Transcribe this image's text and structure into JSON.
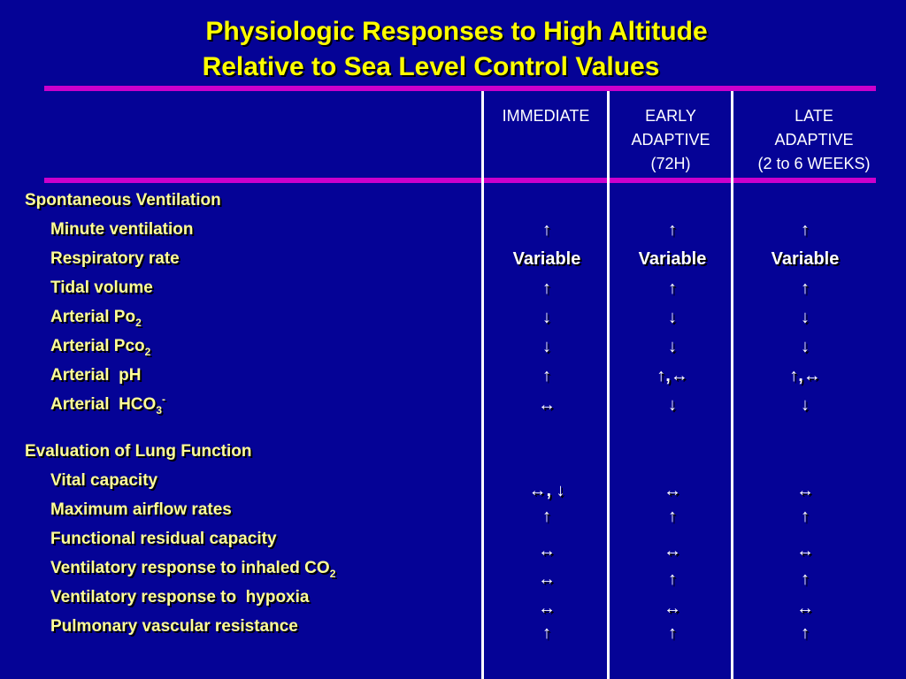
{
  "title": {
    "line1": "Physiologic Responses to High Altitude",
    "line2": "Relative to Sea Level Control Values"
  },
  "columns": [
    {
      "lines": [
        "IMMEDIATE"
      ]
    },
    {
      "lines": [
        "EARLY",
        "ADAPTIVE",
        "(72H)"
      ]
    },
    {
      "lines": [
        "LATE",
        "ADAPTIVE",
        "(2 to 6 WEEKS)"
      ]
    }
  ],
  "sections": [
    {
      "heading": "Spontaneous Ventilation",
      "rows": [
        {
          "label": "Minute ventilation",
          "values": [
            "↑",
            "↑",
            "↑"
          ]
        },
        {
          "label": "Respiratory rate",
          "values": [
            "Variable",
            "Variable",
            "Variable"
          ]
        },
        {
          "label": "Tidal volume",
          "values": [
            "↑",
            "↑",
            "↑"
          ]
        },
        {
          "label": "Arterial Po",
          "sub": "2",
          "values": [
            "↓",
            "↓",
            "↓"
          ]
        },
        {
          "label": "Arterial Pco",
          "sub": "2",
          "values": [
            "↓",
            "↓",
            "↓"
          ]
        },
        {
          "label": "Arterial  pH",
          "values": [
            "↑",
            "↑,↔",
            "↑,↔"
          ]
        },
        {
          "label": "Arterial  HCO",
          "sub": "3",
          "sup": "-",
          "values": [
            "↔",
            "↓",
            "↓"
          ]
        }
      ]
    },
    {
      "heading": "Evaluation of Lung Function",
      "rows": [
        {
          "label": "Vital capacity",
          "values": [
            "↔, ↓",
            "↔",
            "↔"
          ]
        },
        {
          "label": "Maximum airflow rates",
          "values": [
            "↑",
            "↑",
            "↑"
          ]
        },
        {
          "label": "Functional residual capacity",
          "values": [
            "↔",
            "↔",
            "↔"
          ]
        },
        {
          "label": "Ventilatory response to inhaled CO",
          "sub": "2",
          "values": [
            "↔",
            "↑",
            "↑"
          ]
        },
        {
          "label": "Ventilatory response to  hypoxia",
          "values": [
            "↔",
            "↔",
            "↔"
          ]
        },
        {
          "label": "Pulmonary vascular resistance",
          "values": [
            "↑",
            "↑",
            "↑"
          ]
        }
      ]
    }
  ],
  "colors": {
    "background": "#050396",
    "title": "#ffff00",
    "label": "#ffff99",
    "rule": "#cc00cc",
    "divider": "#ffffff"
  }
}
